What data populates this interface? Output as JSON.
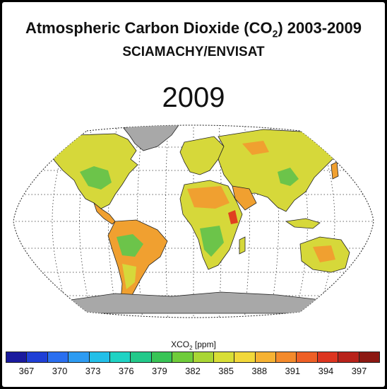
{
  "header": {
    "title": "Atmospheric Carbon Dioxide (CO",
    "title_sub": "2",
    "title_suffix": ") 2003-2009",
    "subtitle": "SCIAMACHY/ENVISAT",
    "year": "2009"
  },
  "colorbar": {
    "label_prefix": "XCO",
    "label_sub": "2",
    "label_suffix": " [ppm]",
    "ticks": [
      "367",
      "370",
      "373",
      "376",
      "379",
      "382",
      "385",
      "388",
      "391",
      "394",
      "397"
    ],
    "colors": [
      "#1a1a9e",
      "#1f3fd6",
      "#2a6ff0",
      "#2d9bf2",
      "#22bfe8",
      "#1fd3c4",
      "#22c98a",
      "#38c456",
      "#6fcc3a",
      "#a9d634",
      "#d8de36",
      "#f2d83a",
      "#f6b233",
      "#f48a2b",
      "#ee5f25",
      "#dd3520",
      "#b8221a",
      "#8c1812"
    ]
  },
  "map": {
    "projection": "robinson",
    "graticule": "dotted",
    "land_colors": {
      "high": "#f0a030",
      "mid": "#d6d83a",
      "low": "#6cc44a",
      "ice": "#a8a8a8",
      "hotspot": "#e04020"
    }
  }
}
